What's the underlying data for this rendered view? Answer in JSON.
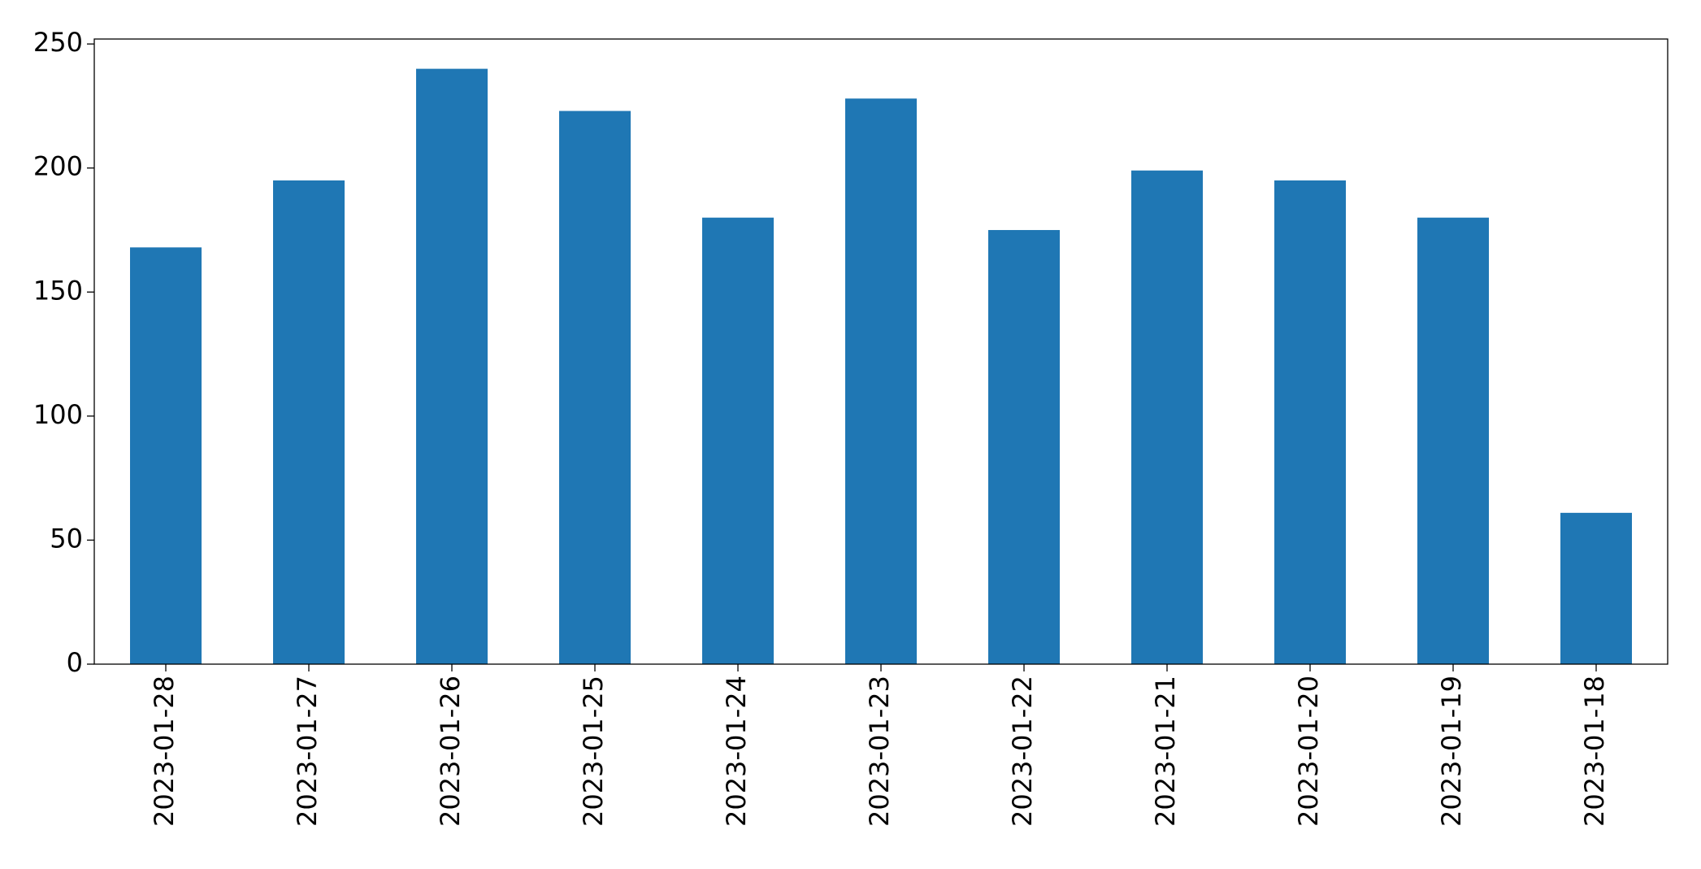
{
  "chart_data": {
    "type": "bar",
    "categories": [
      "2023-01-28",
      "2023-01-27",
      "2023-01-26",
      "2023-01-25",
      "2023-01-24",
      "2023-01-23",
      "2023-01-22",
      "2023-01-21",
      "2023-01-20",
      "2023-01-19",
      "2023-01-18"
    ],
    "values": [
      168,
      195,
      240,
      223,
      180,
      228,
      175,
      199,
      195,
      180,
      61
    ],
    "color": "#1f77b4",
    "ylim": [
      0,
      252
    ],
    "yticks": [
      0,
      50,
      100,
      150,
      200,
      250
    ],
    "grid": false
  }
}
